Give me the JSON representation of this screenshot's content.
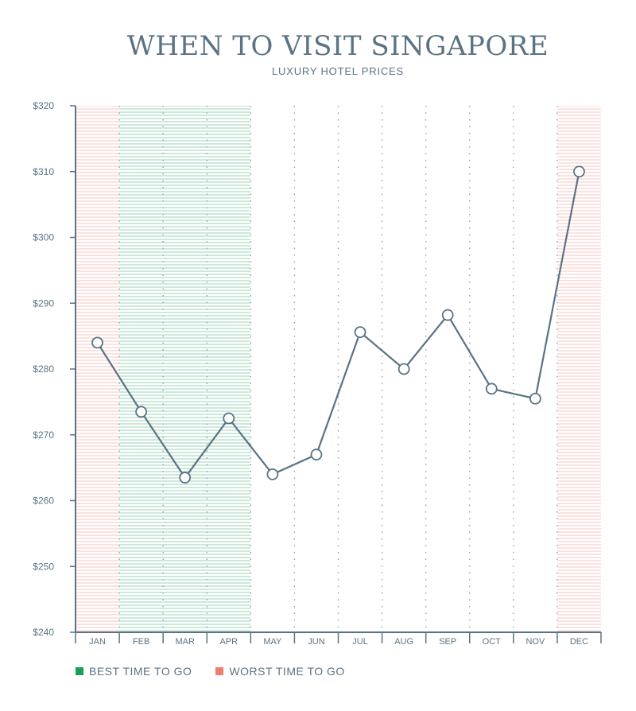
{
  "chart_data": {
    "type": "line",
    "title": "WHEN TO VISIT SINGAPORE",
    "subtitle": "LUXURY HOTEL PRICES",
    "categories": [
      "JAN",
      "FEB",
      "MAR",
      "APR",
      "MAY",
      "JUN",
      "JUL",
      "AUG",
      "SEP",
      "OCT",
      "NOV",
      "DEC"
    ],
    "values": [
      284,
      273.5,
      263.5,
      272.5,
      264,
      267,
      285.6,
      280,
      288.2,
      277,
      275.5,
      310
    ],
    "ylim": [
      240,
      320
    ],
    "yticks": [
      240,
      250,
      260,
      270,
      280,
      290,
      300,
      310,
      320
    ],
    "ytick_labels": [
      "$240",
      "$250",
      "$260",
      "$270",
      "$280",
      "$290",
      "$300",
      "$310",
      "$320"
    ],
    "best_months": [
      "FEB",
      "MAR",
      "APR"
    ],
    "worst_months": [
      "JAN",
      "DEC"
    ],
    "grid": "vertical dotted",
    "legend": [
      {
        "label": "BEST TIME TO GO",
        "color": "#1a9e5a"
      },
      {
        "label": "WORST TIME TO GO",
        "color": "#f07d6e"
      }
    ],
    "legend_position": "bottom-left",
    "colors": {
      "line": "#5a7384",
      "best": "#1a9e5a",
      "worst": "#f07d6e",
      "axis": "#5a7384"
    }
  }
}
